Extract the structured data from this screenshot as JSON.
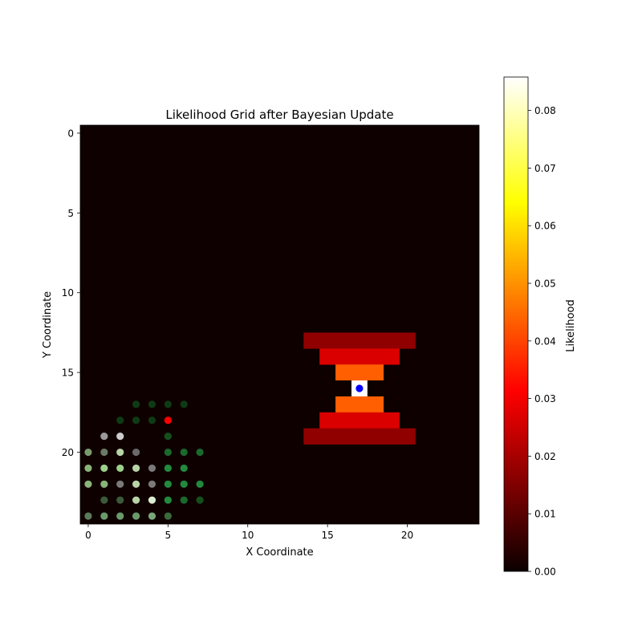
{
  "chart_data": {
    "type": "heatmap",
    "title": "Likelihood Grid after Bayesian Update",
    "xlabel": "X Coordinate",
    "ylabel": "Y Coordinate",
    "colorbar_label": "Likelihood",
    "colormap": "hot",
    "grid_size": [
      25,
      25
    ],
    "xlim": [
      -0.5,
      24.5
    ],
    "ylim": [
      24.5,
      -0.5
    ],
    "y_axis_inverted": true,
    "xticks": [
      0,
      5,
      10,
      15,
      20
    ],
    "yticks": [
      0,
      5,
      10,
      15,
      20
    ],
    "colorbar_range": [
      0,
      0.0858
    ],
    "colorbar_ticks": [
      "0.00",
      "0.01",
      "0.02",
      "0.03",
      "0.04",
      "0.05",
      "0.06",
      "0.07",
      "0.08"
    ],
    "background_value": 0.0005,
    "likelihood_rows": [
      {
        "y": 13,
        "x_start": 14,
        "x_end": 20,
        "value": 0.0165
      },
      {
        "y": 14,
        "x_start": 15,
        "x_end": 19,
        "value": 0.0255
      },
      {
        "y": 15,
        "x_start": 16,
        "x_end": 18,
        "value": 0.0435
      },
      {
        "y": 16,
        "x_start": 16,
        "x_end": 16,
        "value": 0.0005
      },
      {
        "y": 16,
        "x_start": 17,
        "x_end": 17,
        "value": 0.0858
      },
      {
        "y": 16,
        "x_start": 18,
        "x_end": 18,
        "value": 0.0005
      },
      {
        "y": 17,
        "x_start": 16,
        "x_end": 18,
        "value": 0.0435
      },
      {
        "y": 18,
        "x_start": 15,
        "x_end": 19,
        "value": 0.0255
      },
      {
        "y": 19,
        "x_start": 14,
        "x_end": 20,
        "value": 0.0165
      }
    ],
    "target_marker": {
      "x": 17,
      "y": 16,
      "color": "#0000ff"
    },
    "observer_marker": {
      "x": 5,
      "y": 18,
      "color": "#ff0000"
    },
    "sample_points": [
      {
        "x": 3,
        "y": 17,
        "color": "#0e3a14"
      },
      {
        "x": 4,
        "y": 17,
        "color": "#0e3a14"
      },
      {
        "x": 5,
        "y": 17,
        "color": "#0e3a14"
      },
      {
        "x": 6,
        "y": 17,
        "color": "#0e3a14"
      },
      {
        "x": 2,
        "y": 18,
        "color": "#0e3a14"
      },
      {
        "x": 3,
        "y": 18,
        "color": "#0e3a14"
      },
      {
        "x": 4,
        "y": 18,
        "color": "#0e3a14"
      },
      {
        "x": 1,
        "y": 19,
        "color": "#9a9a9a"
      },
      {
        "x": 2,
        "y": 19,
        "color": "#cccccc"
      },
      {
        "x": 5,
        "y": 19,
        "color": "#14501c"
      },
      {
        "x": 0,
        "y": 20,
        "color": "#7a9a6e"
      },
      {
        "x": 1,
        "y": 20,
        "color": "#6a7a66"
      },
      {
        "x": 2,
        "y": 20,
        "color": "#b8d4a6"
      },
      {
        "x": 3,
        "y": 20,
        "color": "#6a6a6a"
      },
      {
        "x": 5,
        "y": 20,
        "color": "#1a6a2c"
      },
      {
        "x": 6,
        "y": 20,
        "color": "#1a6a2c"
      },
      {
        "x": 7,
        "y": 20,
        "color": "#1a6a2c"
      },
      {
        "x": 0,
        "y": 21,
        "color": "#8ab47a"
      },
      {
        "x": 1,
        "y": 21,
        "color": "#9cd08c"
      },
      {
        "x": 2,
        "y": 21,
        "color": "#9cd08c"
      },
      {
        "x": 3,
        "y": 21,
        "color": "#b8d4a6"
      },
      {
        "x": 4,
        "y": 21,
        "color": "#7a7a7a"
      },
      {
        "x": 5,
        "y": 21,
        "color": "#228a3c"
      },
      {
        "x": 6,
        "y": 21,
        "color": "#228a3c"
      },
      {
        "x": 0,
        "y": 22,
        "color": "#8ab47a"
      },
      {
        "x": 1,
        "y": 22,
        "color": "#8ab47a"
      },
      {
        "x": 2,
        "y": 22,
        "color": "#7a7a7a"
      },
      {
        "x": 3,
        "y": 22,
        "color": "#b8d4a6"
      },
      {
        "x": 4,
        "y": 22,
        "color": "#7a7a7a"
      },
      {
        "x": 5,
        "y": 22,
        "color": "#228a3c"
      },
      {
        "x": 6,
        "y": 22,
        "color": "#228a3c"
      },
      {
        "x": 7,
        "y": 22,
        "color": "#228a3c"
      },
      {
        "x": 1,
        "y": 23,
        "color": "#3a5a3a"
      },
      {
        "x": 2,
        "y": 23,
        "color": "#3a5a3a"
      },
      {
        "x": 3,
        "y": 23,
        "color": "#b8d4a6"
      },
      {
        "x": 4,
        "y": 23,
        "color": "#dcecd0"
      },
      {
        "x": 5,
        "y": 23,
        "color": "#228a3c"
      },
      {
        "x": 6,
        "y": 23,
        "color": "#1a6a2c"
      },
      {
        "x": 7,
        "y": 23,
        "color": "#14501c"
      },
      {
        "x": 0,
        "y": 24,
        "color": "#5a7a5a"
      },
      {
        "x": 1,
        "y": 24,
        "color": "#6a9a6a"
      },
      {
        "x": 2,
        "y": 24,
        "color": "#6a9a6a"
      },
      {
        "x": 3,
        "y": 24,
        "color": "#6a9a6a"
      },
      {
        "x": 4,
        "y": 24,
        "color": "#7aa67a"
      },
      {
        "x": 5,
        "y": 24,
        "color": "#3a6a3a"
      }
    ]
  }
}
